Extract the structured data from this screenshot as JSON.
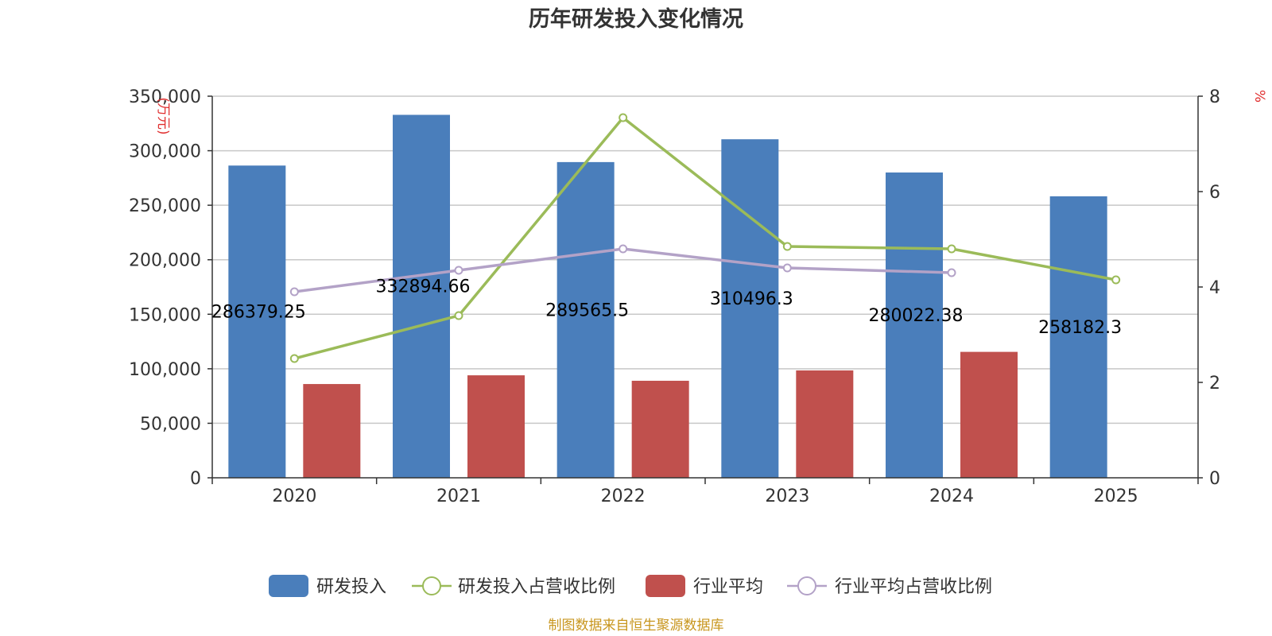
{
  "chart_data": {
    "type": "bar",
    "title": "历年研发投入变化情况",
    "categories": [
      "2020",
      "2021",
      "2022",
      "2023",
      "2024",
      "2025"
    ],
    "ylabel_left": "(万元)",
    "ylabel_right": "%",
    "ylim_left": [
      0,
      350000
    ],
    "ylim_right": [
      0,
      8
    ],
    "yticks_left": [
      "0",
      "50,000",
      "100,000",
      "150,000",
      "200,000",
      "250,000",
      "300,000",
      "350,000"
    ],
    "yticks_right": [
      "0",
      "2",
      "4",
      "6",
      "8"
    ],
    "grid": true,
    "legend_position": "bottom",
    "series": [
      {
        "name": "研发投入",
        "kind": "bar",
        "axis": "left",
        "color": "#4a7ebb",
        "values": [
          286379.25,
          332894.66,
          289565.5,
          310496.3,
          280022.38,
          258182.3
        ],
        "labels": [
          "286379.25",
          "332894.66",
          "289565.5",
          "310496.3",
          "280022.38",
          "258182.3"
        ]
      },
      {
        "name": "研发投入占营收比例",
        "kind": "line",
        "axis": "right",
        "color": "#9bbb59",
        "values": [
          2.5,
          3.4,
          7.55,
          4.85,
          4.8,
          4.15
        ]
      },
      {
        "name": "行业平均",
        "kind": "bar",
        "axis": "left",
        "color": "#c0504d",
        "values": [
          86000,
          94000,
          89000,
          98500,
          115500,
          null
        ]
      },
      {
        "name": "行业平均占营收比例",
        "kind": "line",
        "axis": "right",
        "color": "#b3a2c7",
        "values": [
          3.9,
          4.35,
          4.8,
          4.4,
          4.3,
          null
        ]
      }
    ]
  },
  "source_text": "制图数据来自恒生聚源数据库"
}
